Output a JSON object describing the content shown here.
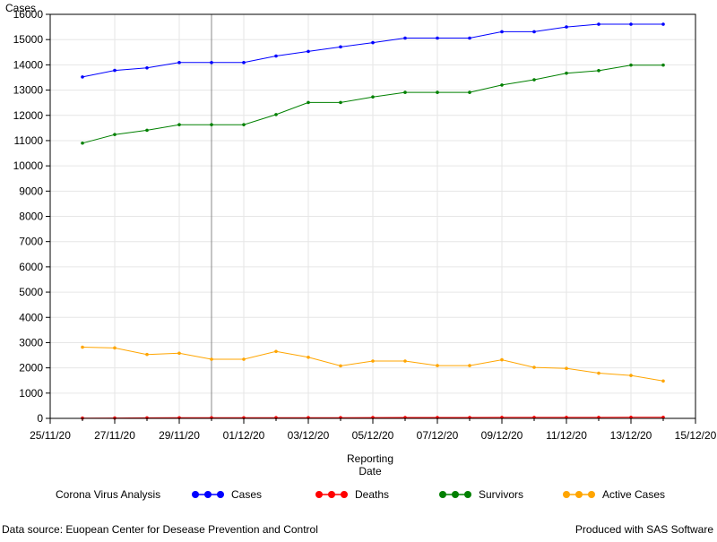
{
  "chart_data": {
    "type": "line",
    "ylabel": "Cases",
    "xlabel_lines": [
      "Reporting",
      "Date"
    ],
    "legend_title": "Corona Virus Analysis",
    "legend_position": "bottom",
    "ylim": [
      0,
      16000
    ],
    "y_ticks": [
      0,
      1000,
      2000,
      3000,
      4000,
      5000,
      6000,
      7000,
      8000,
      9000,
      10000,
      11000,
      12000,
      13000,
      14000,
      15000,
      16000
    ],
    "x_tick_labels": [
      "25/11/20",
      "27/11/20",
      "29/11/20",
      "01/12/20",
      "03/12/20",
      "05/12/20",
      "07/12/20",
      "09/12/20",
      "11/12/20",
      "13/12/20",
      "15/12/20"
    ],
    "x_range": [
      "2020-11-25",
      "2020-12-15"
    ],
    "grid": true,
    "reference_line_date": "2020-11-30",
    "x": [
      "2020-11-26",
      "2020-11-27",
      "2020-11-28",
      "2020-11-29",
      "2020-11-30",
      "2020-12-01",
      "2020-12-02",
      "2020-12-03",
      "2020-12-04",
      "2020-12-05",
      "2020-12-06",
      "2020-12-07",
      "2020-12-08",
      "2020-12-09",
      "2020-12-10",
      "2020-12-11",
      "2020-12-12",
      "2020-12-13",
      "2020-12-14"
    ],
    "series": [
      {
        "name": "Cases",
        "color": "#0000ff",
        "values": [
          13520,
          13780,
          13880,
          14090,
          14090,
          14090,
          14350,
          14530,
          14710,
          14880,
          15060,
          15060,
          15060,
          15310,
          15310,
          15500,
          15610,
          15610,
          15610
        ]
      },
      {
        "name": "Deaths",
        "color": "#ff0000",
        "values": [
          10,
          15,
          20,
          25,
          25,
          25,
          28,
          30,
          30,
          32,
          35,
          35,
          35,
          38,
          38,
          40,
          40,
          42,
          42
        ]
      },
      {
        "name": "Survivors",
        "color": "#008000",
        "values": [
          10900,
          11240,
          11410,
          11630,
          11630,
          11630,
          12030,
          12510,
          12510,
          12730,
          12910,
          12910,
          12910,
          13200,
          13410,
          13670,
          13770,
          13990,
          13990
        ]
      },
      {
        "name": "Active Cases",
        "color": "#ffa500",
        "values": [
          2820,
          2790,
          2530,
          2580,
          2340,
          2340,
          2650,
          2420,
          2080,
          2270,
          2270,
          2090,
          2090,
          2320,
          2020,
          1980,
          1790,
          1700,
          1480
        ]
      }
    ]
  },
  "footer": {
    "left": "Data source: Euopean Center for Desease Prevention and Control",
    "right": "Produced with SAS Software"
  }
}
